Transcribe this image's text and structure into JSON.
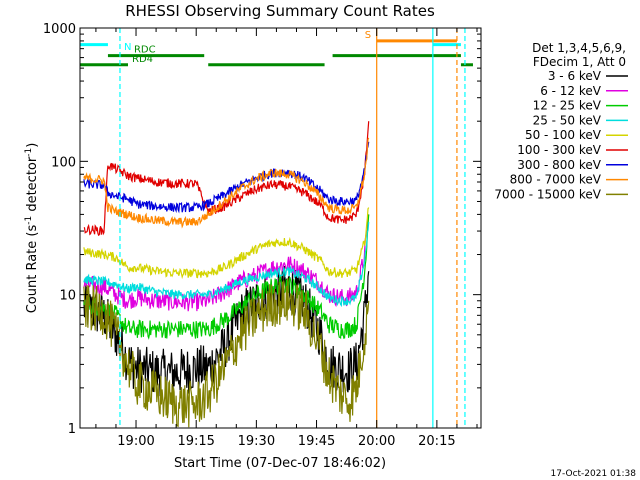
{
  "chart_data": {
    "type": "line",
    "title": "RHESSI Observing Summary Count Rates",
    "xlabel": "Start Time (07-Dec-07 18:46:02)",
    "ylabel": "Count Rate (s",
    "ylabel_sup1": "-1",
    "ylabel_mid": " detector",
    "ylabel_sup2": "-1",
    "ylabel_end": ")",
    "y_scale": "log",
    "ylim": [
      1,
      1000
    ],
    "xlim": [
      "18:46:02",
      "20:26:00"
    ],
    "y_ticks": [
      {
        "label": "1",
        "value": 1
      },
      {
        "label": "10",
        "value": 10
      },
      {
        "label": "100",
        "value": 100
      },
      {
        "label": "1000",
        "value": 1000
      }
    ],
    "x_ticks": [
      {
        "label": "19:00",
        "value": "19:00"
      },
      {
        "label": "19:15",
        "value": "19:15"
      },
      {
        "label": "19:30",
        "value": "19:30"
      },
      {
        "label": "19:45",
        "value": "19:45"
      },
      {
        "label": "20:00",
        "value": "20:00"
      },
      {
        "label": "20:15",
        "value": "20:15"
      }
    ],
    "legend_header": [
      "Det 1,3,4,5,6,9,",
      "FDecim 1, Att 0"
    ],
    "legend_placement": "right",
    "footer_date": "17-Oct-2021 01:38",
    "series": [
      {
        "name": "3 - 6 keV",
        "color": "#000000",
        "x": [
          "18:47",
          "18:52",
          "18:55",
          "18:58",
          "19:00",
          "19:05",
          "19:10",
          "19:15",
          "19:18",
          "19:22",
          "19:26",
          "19:30",
          "19:34",
          "19:38",
          "19:42",
          "19:46",
          "19:48",
          "19:51",
          "19:53",
          "19:55",
          "19:57",
          "19:58"
        ],
        "y": [
          8,
          7,
          5,
          3.2,
          2.8,
          2.6,
          2.6,
          2.8,
          2.8,
          4,
          7,
          9,
          10,
          11.5,
          9,
          5,
          3,
          2.8,
          2.7,
          3,
          7,
          15
        ]
      },
      {
        "name": "6 - 12 keV",
        "color": "#e000e0",
        "x": [
          "18:47",
          "18:52",
          "18:55",
          "18:58",
          "19:00",
          "19:05",
          "19:10",
          "19:15",
          "19:18",
          "19:22",
          "19:26",
          "19:30",
          "19:34",
          "19:38",
          "19:42",
          "19:46",
          "19:48",
          "19:51",
          "19:53",
          "19:55",
          "19:57",
          "19:58"
        ],
        "y": [
          12,
          11.5,
          10,
          9,
          9.5,
          9,
          8.8,
          8.8,
          9,
          10.5,
          12.5,
          14,
          16,
          17,
          15,
          12,
          10,
          9.5,
          9.5,
          10.5,
          20,
          40
        ]
      },
      {
        "name": "12 - 25 keV",
        "color": "#00cc00",
        "x": [
          "18:47",
          "18:52",
          "18:55",
          "18:58",
          "19:00",
          "19:05",
          "19:10",
          "19:15",
          "19:18",
          "19:22",
          "19:26",
          "19:30",
          "19:34",
          "19:38",
          "19:42",
          "19:46",
          "19:48",
          "19:51",
          "19:53",
          "19:55",
          "19:57",
          "19:58"
        ],
        "y": [
          8.5,
          8,
          7,
          5.5,
          5.5,
          5.5,
          5.5,
          5.5,
          5.5,
          6.5,
          8,
          10,
          11.5,
          12,
          10,
          7.5,
          6,
          5.5,
          5.5,
          6,
          15,
          40
        ]
      },
      {
        "name": "25 - 50 keV",
        "color": "#00dddd",
        "x": [
          "18:47",
          "18:52",
          "18:55",
          "18:58",
          "19:00",
          "19:05",
          "19:10",
          "19:15",
          "19:18",
          "19:22",
          "19:26",
          "19:30",
          "19:34",
          "19:38",
          "19:42",
          "19:46",
          "19:48",
          "19:51",
          "19:53",
          "19:55",
          "19:57",
          "19:58"
        ],
        "y": [
          13,
          12.5,
          12,
          11,
          11.5,
          10.5,
          10,
          10,
          10,
          11,
          12.5,
          13.5,
          14.5,
          15,
          13.5,
          11,
          9.5,
          9,
          9,
          9.5,
          18,
          35
        ]
      },
      {
        "name": "50 - 100 keV",
        "color": "#d4d400",
        "x": [
          "18:47",
          "18:52",
          "18:55",
          "18:58",
          "19:00",
          "19:05",
          "19:10",
          "19:15",
          "19:18",
          "19:22",
          "19:26",
          "19:30",
          "19:34",
          "19:38",
          "19:42",
          "19:46",
          "19:48",
          "19:51",
          "19:53",
          "19:55",
          "19:57",
          "19:58"
        ],
        "y": [
          21,
          20,
          19,
          16,
          16,
          15,
          14.5,
          14.5,
          14.5,
          16,
          19,
          22,
          24.5,
          25,
          22,
          18,
          15,
          14.5,
          14.5,
          15.5,
          25,
          45
        ]
      },
      {
        "name": "100 - 300 keV",
        "color": "#e00000",
        "x": [
          "18:47",
          "18:52",
          "18:53",
          "18:55",
          "18:58",
          "19:00",
          "19:05",
          "19:10",
          "19:15",
          "19:18",
          "19:22",
          "19:26",
          "19:30",
          "19:34",
          "19:38",
          "19:42",
          "19:46",
          "19:48",
          "19:51",
          "19:53",
          "19:55",
          "19:57",
          "19:58"
        ],
        "y": [
          31,
          30,
          95,
          88,
          78,
          75,
          70,
          68,
          68,
          42,
          46,
          54,
          62,
          67,
          65,
          58,
          47,
          38,
          36,
          37,
          40,
          80,
          200
        ]
      },
      {
        "name": "300 - 800 keV",
        "color": "#0000dd",
        "x": [
          "18:47",
          "18:52",
          "18:53",
          "18:55",
          "18:58",
          "19:00",
          "19:05",
          "19:10",
          "19:15",
          "19:18",
          "19:22",
          "19:26",
          "19:30",
          "19:34",
          "19:38",
          "19:42",
          "19:46",
          "19:48",
          "19:51",
          "19:53",
          "19:55",
          "19:57",
          "19:58"
        ],
        "y": [
          68,
          66,
          58,
          55,
          52,
          48,
          46,
          45,
          45,
          48,
          56,
          66,
          75,
          82,
          83,
          75,
          60,
          52,
          50,
          50,
          51,
          85,
          140
        ]
      },
      {
        "name": "800 - 7000 keV",
        "color": "#ff8800",
        "x": [
          "18:47",
          "18:52",
          "18:53",
          "18:55",
          "18:58",
          "19:00",
          "19:05",
          "19:10",
          "19:15",
          "19:18",
          "19:22",
          "19:26",
          "19:30",
          "19:34",
          "19:38",
          "19:42",
          "19:46",
          "19:48",
          "19:51",
          "19:53",
          "19:55",
          "19:57",
          "19:58"
        ],
        "y": [
          75,
          72,
          45,
          42,
          40,
          38,
          36,
          35,
          35,
          40,
          50,
          62,
          74,
          82,
          80,
          70,
          54,
          45,
          43,
          43,
          45,
          80,
          150
        ]
      },
      {
        "name": "7000 - 15000 keV",
        "color": "#808000",
        "x": [
          "18:47",
          "18:52",
          "18:55",
          "18:58",
          "19:00",
          "19:05",
          "19:10",
          "19:15",
          "19:18",
          "19:22",
          "19:26",
          "19:30",
          "19:34",
          "19:38",
          "19:42",
          "19:46",
          "19:48",
          "19:51",
          "19:53",
          "19:55",
          "19:57",
          "19:58"
        ],
        "y": [
          8,
          7.5,
          5,
          3,
          2.2,
          1.8,
          1.5,
          1.5,
          1.8,
          2.8,
          5,
          7,
          8.5,
          9,
          7.5,
          4,
          2.5,
          1.8,
          1.6,
          2,
          5,
          9
        ]
      }
    ],
    "status_bars": [
      {
        "label": "",
        "color": "#00ffff",
        "y": 750,
        "segments": [
          [
            "18:46:02",
            "18:53"
          ],
          [
            "20:14",
            "20:21"
          ]
        ]
      },
      {
        "label": "N",
        "color": "#00ffff",
        "y": 650,
        "segments": []
      },
      {
        "label": "S",
        "color": "#ff8800",
        "y": 800,
        "segments": [
          [
            "20:00",
            "20:20"
          ]
        ]
      },
      {
        "label": "RDC",
        "color": "#008800",
        "y": 620,
        "segments": [
          [
            "18:53",
            "19:17"
          ],
          [
            "19:49",
            "20:21"
          ]
        ]
      },
      {
        "label": "RD4",
        "color": "#008800",
        "y": 530,
        "segments": [
          [
            "18:46:02",
            "18:58"
          ],
          [
            "19:18",
            "19:47"
          ],
          [
            "20:21",
            "20:24"
          ]
        ]
      }
    ],
    "vertical_lines": [
      {
        "x": "18:56",
        "color": "#00ffff",
        "style": "dashed"
      },
      {
        "x": "20:00",
        "color": "#ff8800",
        "style": "solid"
      },
      {
        "x": "20:14",
        "color": "#00ffff",
        "style": "solid"
      },
      {
        "x": "20:20",
        "color": "#ff8800",
        "style": "dashed"
      },
      {
        "x": "20:22",
        "color": "#00ffff",
        "style": "dashed"
      }
    ]
  }
}
